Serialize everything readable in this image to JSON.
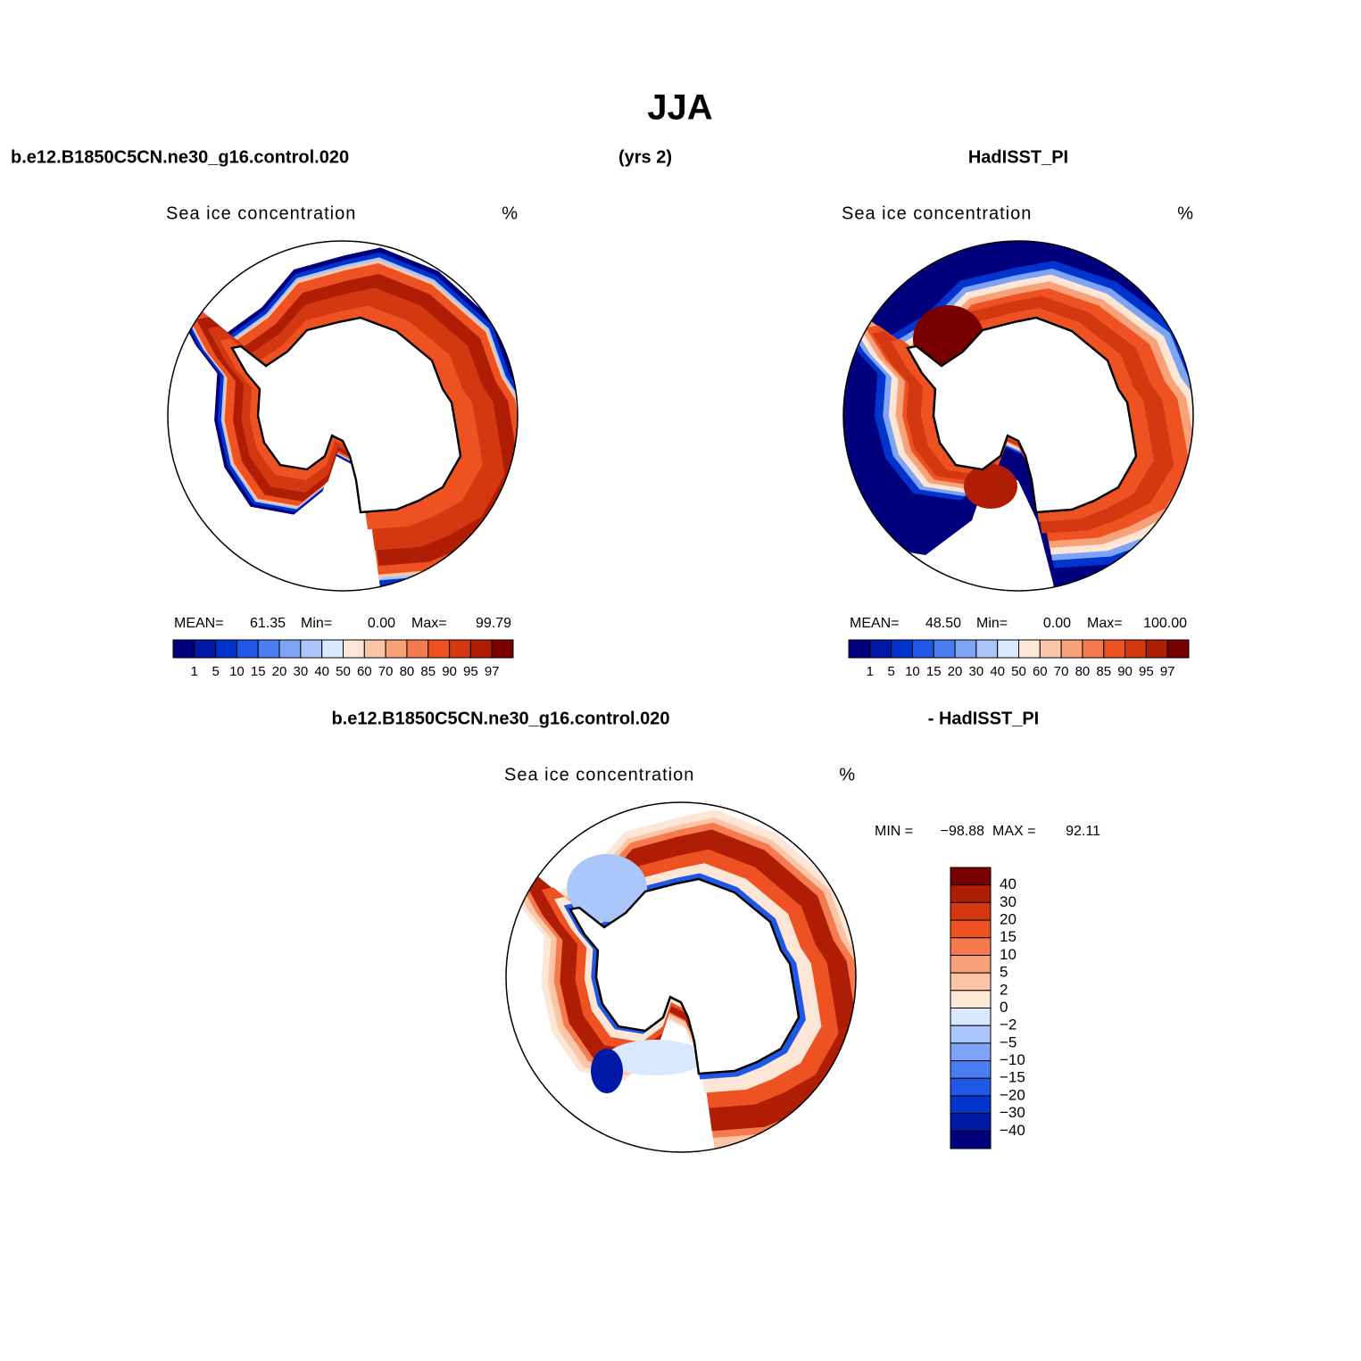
{
  "title": "JJA",
  "header": {
    "left": "b.e12.B1850C5CN.ne30_g16.control.020",
    "center": "(yrs 2)",
    "right": "HadISST_PI"
  },
  "panels": [
    {
      "title": "Sea ice concentration",
      "units": "%",
      "stats": [
        {
          "label": "MEAN=",
          "value": "61.35"
        },
        {
          "label": "Min=",
          "value": "0.00"
        },
        {
          "label": "Max=",
          "value": "99.79"
        }
      ]
    },
    {
      "title": "Sea ice concentration",
      "units": "%",
      "stats": [
        {
          "label": "MEAN=",
          "value": "48.50"
        },
        {
          "label": "Min=",
          "value": "0.00"
        },
        {
          "label": "Max=",
          "value": "100.00"
        }
      ]
    }
  ],
  "colorbar": {
    "labels": [
      "1",
      "5",
      "10",
      "15",
      "20",
      "30",
      "40",
      "50",
      "60",
      "70",
      "80",
      "85",
      "90",
      "95",
      "97"
    ],
    "colors": [
      "#00007f",
      "#0019a6",
      "#0034cc",
      "#1f58e6",
      "#4a7ef0",
      "#7ea5f5",
      "#aac6fa",
      "#d8e8fd",
      "#fde6d6",
      "#fbc6a8",
      "#f8a27a",
      "#f57a4e",
      "#ee5223",
      "#d43810",
      "#b01d05",
      "#780000"
    ]
  },
  "difference": {
    "header_left": "b.e12.B1850C5CN.ne30_g16.control.020",
    "header_right": "- HadISST_PI",
    "title": "Sea ice concentration",
    "units": "%",
    "stats": [
      {
        "label": "MIN =",
        "value": "−98.88"
      },
      {
        "label": "MAX =",
        "value": "92.11"
      }
    ],
    "colorbar": {
      "labels": [
        "40",
        "30",
        "20",
        "15",
        "10",
        "5",
        "2",
        "0",
        "−2",
        "−5",
        "−10",
        "−15",
        "−20",
        "−30",
        "−40"
      ],
      "colors": [
        "#780000",
        "#b01d05",
        "#d43810",
        "#ee5223",
        "#f57a4e",
        "#f8a27a",
        "#fbc6a8",
        "#fde6d6",
        "#d8e8fd",
        "#aac6fa",
        "#7ea5f5",
        "#4a7ef0",
        "#1f58e6",
        "#0034cc",
        "#0019a6",
        "#00007f"
      ]
    }
  }
}
